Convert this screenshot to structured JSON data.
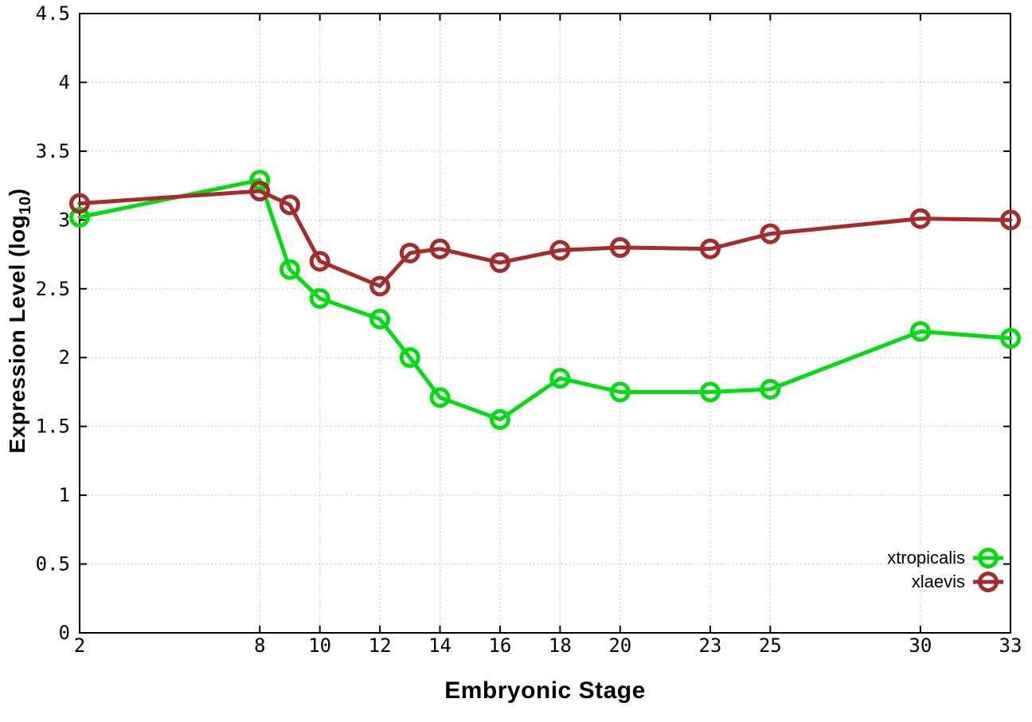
{
  "chart_data": {
    "type": "line",
    "title": "",
    "xlabel": "Embryonic Stage",
    "ylabel": "Expression Level (log10)",
    "ylabel_parts": {
      "main": "Expression Level (log",
      "sub": "10",
      "close": ")"
    },
    "xlim": [
      2,
      33
    ],
    "ylim": [
      0,
      4.5
    ],
    "x_ticks": [
      2,
      8,
      10,
      12,
      14,
      16,
      18,
      20,
      23,
      25,
      30,
      33
    ],
    "x_tick_labels": [
      "2",
      "8",
      "10",
      "12",
      "14",
      "16",
      "18",
      "20",
      "23",
      "25",
      "30",
      "33"
    ],
    "y_ticks": [
      0,
      0.5,
      1,
      1.5,
      2,
      2.5,
      3,
      3.5,
      4,
      4.5
    ],
    "y_tick_labels": [
      "0",
      "0.5",
      "1",
      "1.5",
      "2",
      "2.5",
      "3",
      "3.5",
      "4",
      "4.5"
    ],
    "grid": true,
    "legend_position": "bottom-right",
    "x": [
      2,
      8,
      9,
      10,
      12,
      13,
      14,
      16,
      18,
      20,
      23,
      25,
      30,
      33
    ],
    "series": [
      {
        "name": "xtropicalis",
        "color": "#00dd0e",
        "values": [
          3.02,
          3.29,
          2.64,
          2.43,
          2.28,
          2.0,
          1.71,
          1.55,
          1.85,
          1.75,
          1.75,
          1.77,
          2.19,
          2.14
        ]
      },
      {
        "name": "xlaevis",
        "color": "#a62c2c",
        "values": [
          3.12,
          3.21,
          3.11,
          2.7,
          2.52,
          2.76,
          2.79,
          2.69,
          2.78,
          2.8,
          2.79,
          2.9,
          3.01,
          3.0
        ]
      }
    ]
  },
  "style_colors": {
    "border": "#000000",
    "grid": "#b0b0b0",
    "tick_text": "#000000"
  }
}
